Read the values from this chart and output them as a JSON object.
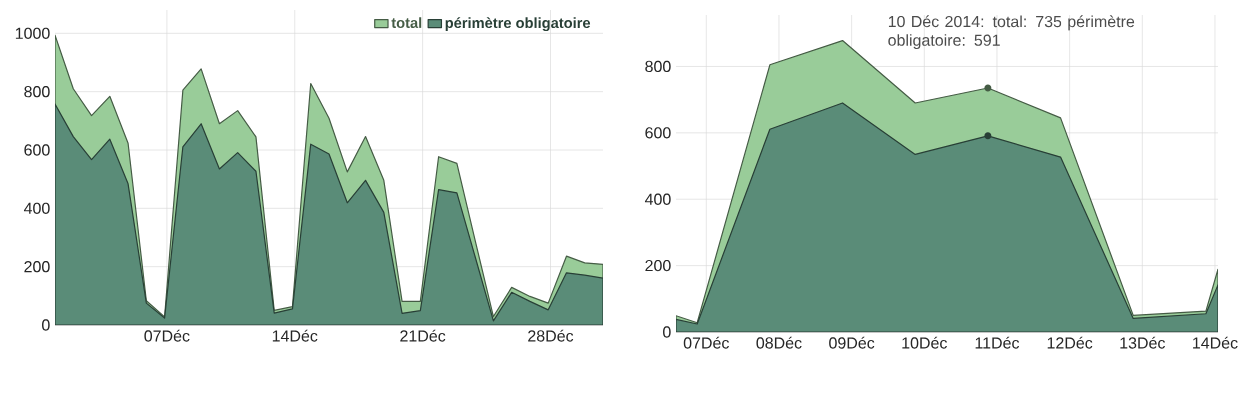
{
  "chart_data": [
    {
      "type": "area",
      "legend": "top right",
      "grid": true,
      "x": [
        "2014-11-30T21:00",
        "2014-12-01T21:00",
        "2014-12-02T21:00",
        "2014-12-03T21:00",
        "2014-12-04T21:00",
        "2014-12-05T21:00",
        "2014-12-06T21:00",
        "2014-12-07T21:00",
        "2014-12-08T21:00",
        "2014-12-09T21:00",
        "2014-12-10T21:00",
        "2014-12-11T21:00",
        "2014-12-12T21:00",
        "2014-12-13T21:00",
        "2014-12-14T21:00",
        "2014-12-15T21:00",
        "2014-12-16T21:00",
        "2014-12-17T21:00",
        "2014-12-18T21:00",
        "2014-12-19T21:00",
        "2014-12-20T21:00",
        "2014-12-21T21:00",
        "2014-12-22T21:00",
        "2014-12-23T21:00",
        "2014-12-24T21:00",
        "2014-12-25T21:00",
        "2014-12-26T21:00",
        "2014-12-27T21:00",
        "2014-12-28T21:00",
        "2014-12-29T21:00",
        "2014-12-30T21:00"
      ],
      "series": [
        {
          "name": "total",
          "color": "#99cc99",
          "values": [
            994,
            810,
            718,
            784,
            623,
            83,
            28,
            805,
            878,
            690,
            735,
            645,
            50,
            63,
            828,
            709,
            525,
            646,
            496,
            81,
            81,
            577,
            554,
            290,
            29,
            129,
            98,
            75,
            236,
            213,
            208
          ]
        },
        {
          "name": "périmètre obligatoire",
          "color": "#5a8c78",
          "values": [
            758,
            646,
            567,
            637,
            484,
            75,
            24,
            611,
            690,
            535,
            591,
            527,
            41,
            55,
            620,
            586,
            419,
            496,
            386,
            40,
            49,
            464,
            453,
            234,
            14,
            112,
            81,
            52,
            179,
            171,
            161
          ]
        }
      ],
      "xlim": [
        "2014-11-30T21:00",
        "2014-12-30T21:00"
      ],
      "xticks": [
        {
          "value": "2014-12-07",
          "label": "07Déc"
        },
        {
          "value": "2014-12-14",
          "label": "14Déc"
        },
        {
          "value": "2014-12-21",
          "label": "21Déc"
        },
        {
          "value": "2014-12-28",
          "label": "28Déc"
        }
      ],
      "ylim": [
        0,
        1080
      ],
      "yticks": [
        0,
        200,
        400,
        600,
        800,
        1000
      ]
    },
    {
      "type": "area",
      "legend": false,
      "grid": true,
      "x": [
        "2014-12-06T14:00",
        "2014-12-06T21:00",
        "2014-12-07T21:00",
        "2014-12-08T21:00",
        "2014-12-09T21:00",
        "2014-12-10T21:00",
        "2014-12-11T21:00",
        "2014-12-12T21:00",
        "2014-12-13T21:00",
        "2014-12-14T01:00"
      ],
      "series": [
        {
          "color": "#99cc99",
          "values": [
            49,
            28,
            805,
            878,
            690,
            735,
            645,
            50,
            63,
            189
          ]
        },
        {
          "color": "#5a8c78",
          "values": [
            38,
            24,
            611,
            690,
            535,
            591,
            527,
            41,
            55,
            142
          ]
        }
      ],
      "xlim": [
        "2014-12-06T14:00",
        "2014-12-14T01:00"
      ],
      "xticks": [
        {
          "value": "2014-12-07",
          "label": "07Déc"
        },
        {
          "value": "2014-12-08",
          "label": "08Déc"
        },
        {
          "value": "2014-12-09",
          "label": "09Déc"
        },
        {
          "value": "2014-12-10",
          "label": "10Déc"
        },
        {
          "value": "2014-12-11",
          "label": "11Déc"
        },
        {
          "value": "2014-12-12",
          "label": "12Déc"
        },
        {
          "value": "2014-12-13",
          "label": "13Déc"
        },
        {
          "value": "2014-12-14",
          "label": "14Déc"
        }
      ],
      "ylim": [
        0,
        955
      ],
      "yticks": [
        0,
        200,
        400,
        600,
        800
      ],
      "annotations": [
        {
          "text": "10 Déc 2014: total: 735 périmètre obligatoire: 591",
          "x": "2014-12-10T21:00",
          "y": 735
        }
      ]
    }
  ]
}
